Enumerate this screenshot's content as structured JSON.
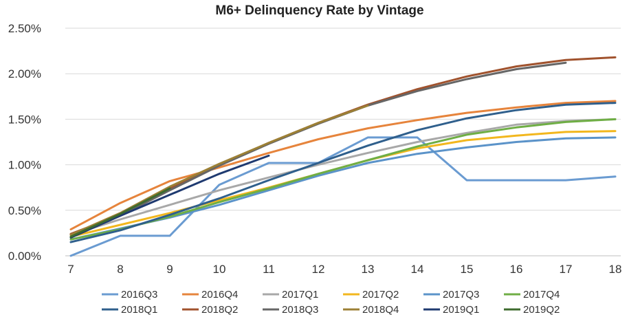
{
  "chart_data": {
    "type": "line",
    "title": "M6+ Delinquency Rate by Vintage",
    "xlabel": "",
    "ylabel": "",
    "x": [
      7,
      8,
      9,
      10,
      11,
      12,
      13,
      14,
      15,
      16,
      17,
      18
    ],
    "y_ticks": [
      "0.00%",
      "0.50%",
      "1.00%",
      "1.50%",
      "2.00%",
      "2.50%"
    ],
    "ylim": [
      0,
      2.5
    ],
    "grid": true,
    "legend_position": "bottom",
    "series": [
      {
        "name": "2016Q3",
        "color": "#6a9bd1",
        "values": [
          0.0,
          0.22,
          0.22,
          0.78,
          1.02,
          1.02,
          1.3,
          1.3,
          0.83,
          0.83,
          0.83,
          0.87
        ]
      },
      {
        "name": "2016Q4",
        "color": "#e6843c",
        "values": [
          0.29,
          0.58,
          0.82,
          0.97,
          1.13,
          1.28,
          1.4,
          1.49,
          1.57,
          1.63,
          1.68,
          1.7
        ]
      },
      {
        "name": "2017Q1",
        "color": "#a8a8a8",
        "values": [
          0.23,
          0.4,
          0.56,
          0.72,
          0.86,
          1.0,
          1.13,
          1.25,
          1.35,
          1.44,
          1.48,
          1.5
        ]
      },
      {
        "name": "2017Q2",
        "color": "#f2b71e",
        "values": [
          0.21,
          0.34,
          0.47,
          0.61,
          0.75,
          0.9,
          1.05,
          1.18,
          1.27,
          1.32,
          1.36,
          1.37
        ]
      },
      {
        "name": "2017Q3",
        "color": "#5b93c9",
        "values": [
          0.18,
          0.3,
          0.42,
          0.56,
          0.72,
          0.88,
          1.02,
          1.12,
          1.19,
          1.25,
          1.29,
          1.3
        ]
      },
      {
        "name": "2017Q4",
        "color": "#6fae45",
        "values": [
          0.18,
          0.29,
          0.43,
          0.59,
          0.74,
          0.9,
          1.05,
          1.2,
          1.33,
          1.41,
          1.47,
          1.5
        ]
      },
      {
        "name": "2018Q1",
        "color": "#2f5f8c",
        "values": [
          0.15,
          0.28,
          0.45,
          0.63,
          0.83,
          1.02,
          1.21,
          1.38,
          1.51,
          1.6,
          1.66,
          1.68
        ]
      },
      {
        "name": "2018Q2",
        "color": "#a0522d",
        "values": [
          0.24,
          0.45,
          0.74,
          1.0,
          1.24,
          1.46,
          1.66,
          1.83,
          1.97,
          2.08,
          2.15,
          2.18
        ]
      },
      {
        "name": "2018Q3",
        "color": "#666666",
        "values": [
          0.23,
          0.44,
          0.72,
          0.99,
          1.23,
          1.45,
          1.65,
          1.81,
          1.94,
          2.05,
          2.12,
          null
        ]
      },
      {
        "name": "2018Q4",
        "color": "#9c8035",
        "values": [
          0.23,
          0.47,
          0.76,
          1.01,
          1.24,
          1.46,
          1.65,
          null,
          null,
          null,
          null,
          null
        ]
      },
      {
        "name": "2019Q1",
        "color": "#1f3a70",
        "values": [
          0.2,
          0.44,
          0.67,
          0.9,
          1.1,
          null,
          null,
          null,
          null,
          null,
          null,
          null
        ]
      },
      {
        "name": "2019Q2",
        "color": "#3e6b2e",
        "values": [
          0.21,
          0.46,
          0.74,
          null,
          null,
          null,
          null,
          null,
          null,
          null,
          null,
          null
        ]
      }
    ]
  }
}
